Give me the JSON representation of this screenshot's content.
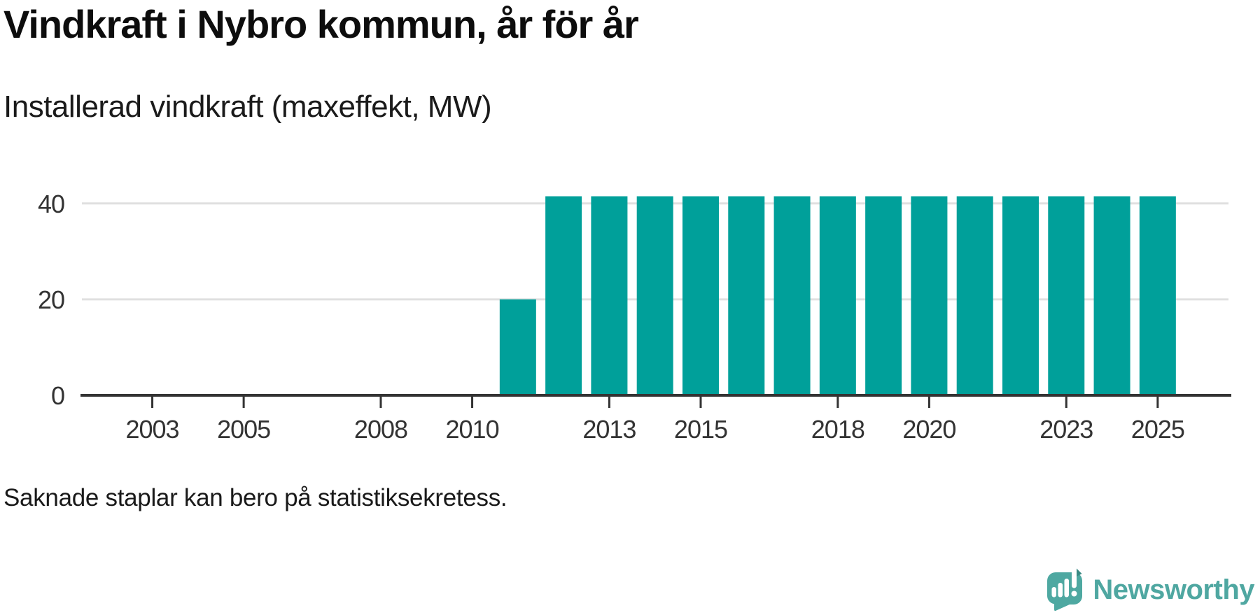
{
  "header": {
    "title": "Vindkraft i Nybro kommun, år för år",
    "subtitle": "Installerad vindkraft (maxeffekt, MW)"
  },
  "chart_data": {
    "type": "bar",
    "title": "Vindkraft i Nybro kommun, år för år",
    "ylabel": "Installerad vindkraft (maxeffekt, MW)",
    "unit": "MW",
    "categories": [
      2002,
      2003,
      2004,
      2005,
      2006,
      2007,
      2008,
      2009,
      2010,
      2011,
      2012,
      2013,
      2014,
      2015,
      2016,
      2017,
      2018,
      2019,
      2020,
      2021,
      2022,
      2023,
      2024,
      2025
    ],
    "values": [
      null,
      null,
      null,
      null,
      null,
      null,
      null,
      null,
      null,
      20,
      41.5,
      41.5,
      41.5,
      41.5,
      41.5,
      41.5,
      41.5,
      41.5,
      41.5,
      41.5,
      41.5,
      41.5,
      41.5,
      41.5
    ],
    "xticks": [
      2003,
      2005,
      2008,
      2010,
      2013,
      2015,
      2018,
      2020,
      2023,
      2025
    ],
    "yticks": [
      0,
      20,
      40
    ],
    "ylim": [
      0,
      48
    ],
    "xlim": [
      2001.46,
      2026.58
    ],
    "grid": "horizontal-only",
    "legend": "none",
    "bar_color": "#00a09a",
    "axis_color": "#333333",
    "gridline_color": "#e0e0e0",
    "tick_label_color": "#333333"
  },
  "footnote": {
    "text": "Saknade staplar kan bero på statistiksekretess."
  },
  "branding": {
    "name": "Newsworthy",
    "icon": "newsworthy-speech-bubble-bar-chart-icon",
    "text_color": "#4fa7a1",
    "icon_color": "#4ea8a1",
    "icon_shadow_color": "#3a8a84",
    "icon_mark_color": "#ffffff"
  }
}
